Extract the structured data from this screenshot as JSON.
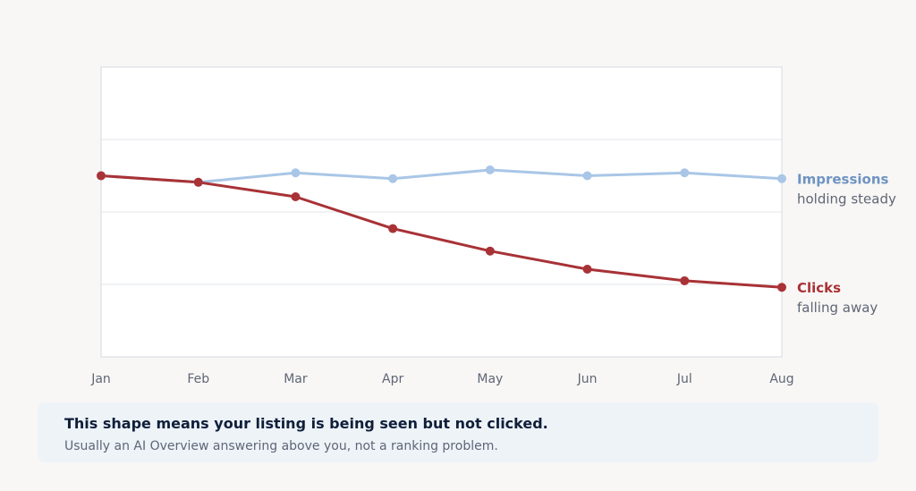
{
  "chart_data": {
    "type": "line",
    "categories": [
      "Jan",
      "Feb",
      "Mar",
      "Apr",
      "May",
      "Jun",
      "Jul",
      "Aug"
    ],
    "ylim": [
      0,
      4
    ],
    "grid": true,
    "series": [
      {
        "name": "Impressions",
        "subtitle": "holding steady",
        "color": "#a9c6e6",
        "label_color": "#6f93c2",
        "values": [
          2.5,
          2.41,
          2.54,
          2.46,
          2.58,
          2.5,
          2.54,
          2.46
        ]
      },
      {
        "name": "Clicks",
        "subtitle": "falling away",
        "color": "#a83236",
        "label_color": "#a83236",
        "values": [
          2.5,
          2.41,
          2.21,
          1.77,
          1.46,
          1.21,
          1.05,
          0.96
        ]
      }
    ]
  },
  "callout": {
    "title": "This shape means your listing is being seen but not clicked.",
    "subtitle": "Usually an AI Overview answering above you, not a ranking problem."
  }
}
